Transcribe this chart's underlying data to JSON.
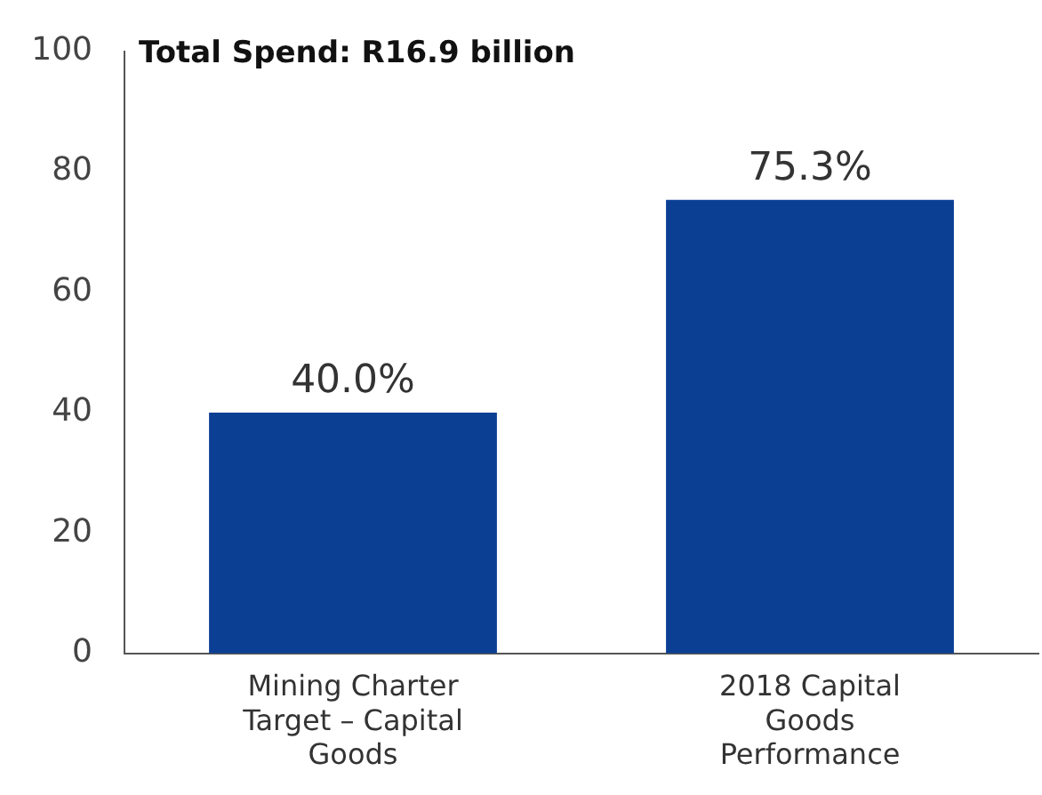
{
  "chart_data": {
    "type": "bar",
    "title": "Total Spend: R16.9 billion",
    "categories": [
      "Mining Charter Target – Capital Goods",
      "2018 Capital Goods Performance"
    ],
    "values": [
      40.0,
      75.3
    ],
    "color": "#0b3f94",
    "value_labels": [
      "40.0%",
      "75.3%"
    ],
    "ylim": [
      0,
      100
    ],
    "yticks": [
      0,
      20,
      40,
      60,
      80,
      100
    ],
    "grid": false,
    "legend": false
  }
}
